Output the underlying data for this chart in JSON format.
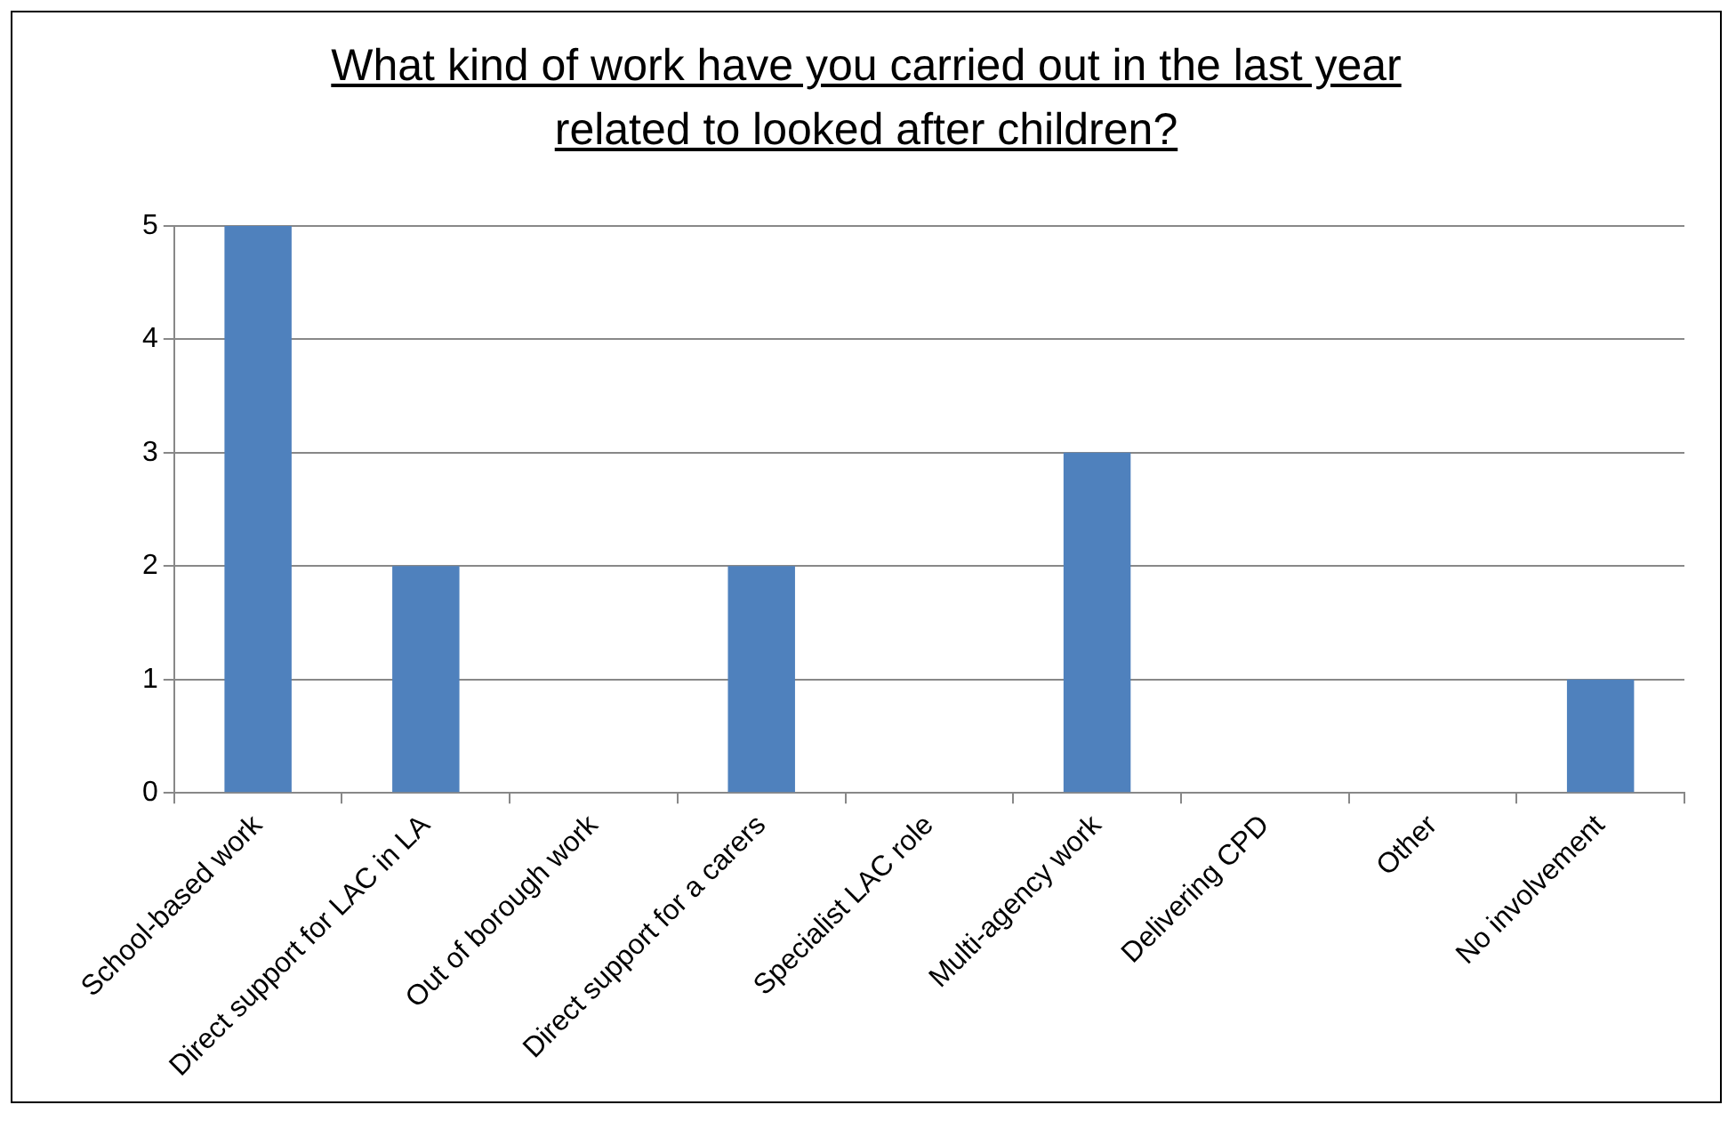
{
  "chart_data": {
    "type": "bar",
    "title": "What kind of work have you carried out in the last year related to looked after children?",
    "categories": [
      "School-based work",
      "Direct support for LAC in LA",
      "Out of borough work",
      "Direct support for a carers",
      "Specialist LAC role",
      "Multi-agency work",
      "Delivering CPD",
      "Other",
      "No involvement"
    ],
    "values": [
      5,
      2,
      0,
      2,
      0,
      3,
      0,
      0,
      1
    ],
    "color": "#4f81bd",
    "ylim": [
      0,
      5
    ],
    "yticks": [
      0,
      1,
      2,
      3,
      4,
      5
    ],
    "grid": "y"
  }
}
